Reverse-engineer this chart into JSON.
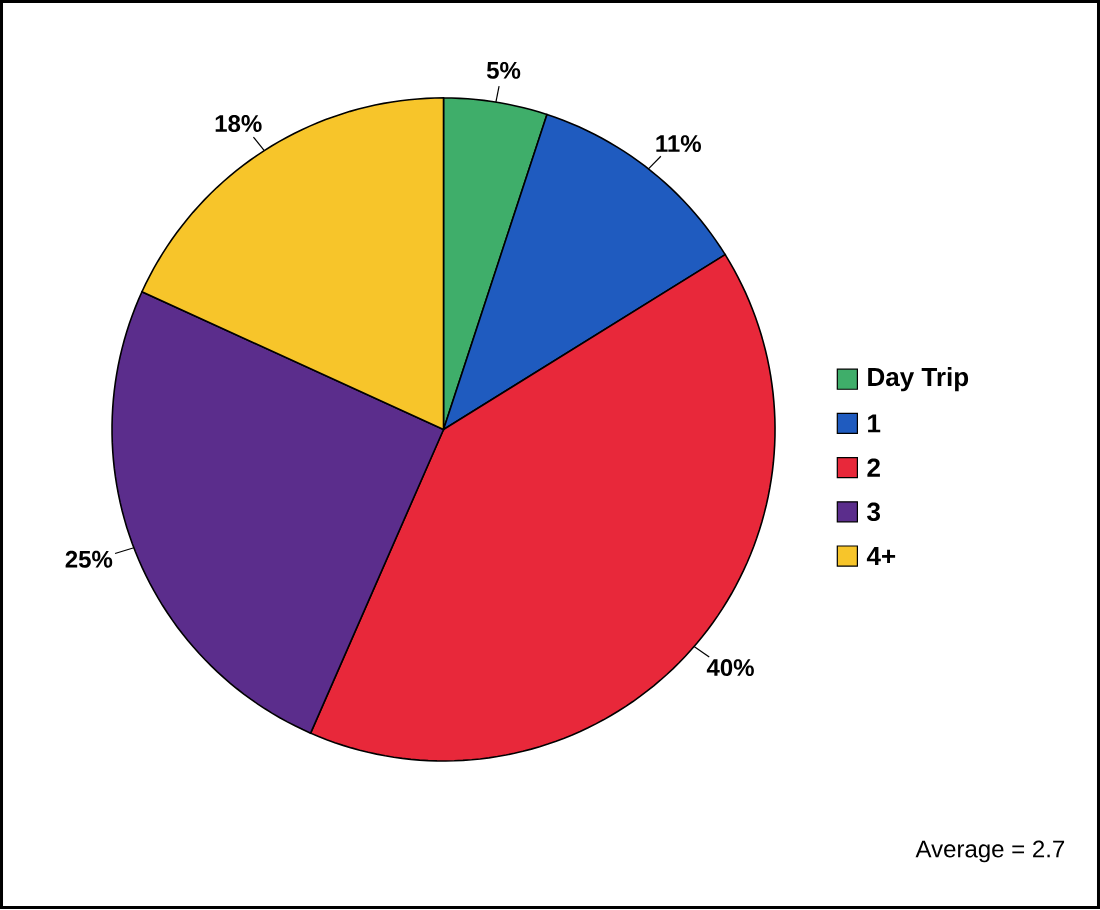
{
  "chart_data": {
    "type": "pie",
    "categories": [
      "Day Trip",
      "1",
      "2",
      "3",
      "4+"
    ],
    "values": [
      5,
      11,
      40,
      25,
      18
    ],
    "value_labels": [
      "5%",
      "11%",
      "40%",
      "25%",
      "18%"
    ],
    "colors": [
      "#3fae6a",
      "#1f5bbf",
      "#e8283a",
      "#5b2d8c",
      "#f7c52a"
    ],
    "legend": "right",
    "annotations": [
      "Average = 2.7"
    ]
  }
}
